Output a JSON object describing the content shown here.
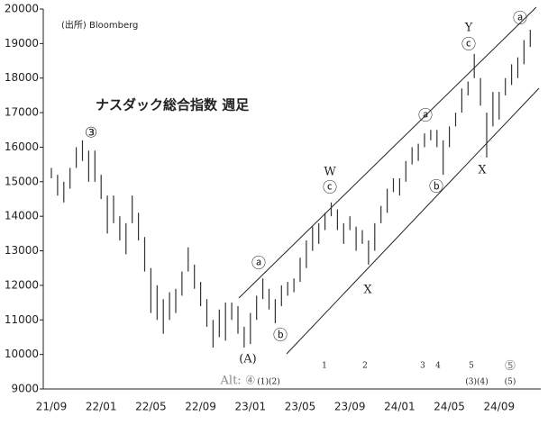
{
  "chart_data": {
    "type": "hilo",
    "title": "ナスダック総合指数 週足",
    "source": "(出所) Bloomberg",
    "color": "#333333",
    "categories": [
      "21/09",
      null,
      null,
      null,
      null,
      null,
      null,
      null,
      "22/01",
      null,
      null,
      null,
      null,
      null,
      null,
      null,
      "22/05",
      null,
      null,
      null,
      null,
      null,
      null,
      null,
      "22/09",
      null,
      null,
      null,
      null,
      null,
      null,
      null,
      "23/01",
      null,
      null,
      null,
      null,
      null,
      null,
      null,
      "23/05",
      null,
      null,
      null,
      null,
      null,
      null,
      null,
      "23/09",
      null,
      null,
      null,
      null,
      null,
      null,
      null,
      "24/01",
      null,
      null,
      null,
      null,
      null,
      null,
      null,
      "24/05",
      null,
      null,
      null,
      null,
      null,
      null,
      null,
      "24/09",
      null,
      null,
      null,
      null,
      null
    ],
    "high": [
      15400,
      15200,
      15000,
      15400,
      16000,
      16200,
      15900,
      15900,
      15200,
      14600,
      14600,
      14000,
      13800,
      14600,
      14100,
      13400,
      12500,
      12000,
      11600,
      11800,
      11900,
      12400,
      13100,
      12600,
      12100,
      11600,
      11000,
      11300,
      11500,
      11500,
      11400,
      10800,
      11200,
      11700,
      12200,
      11900,
      11600,
      12000,
      12100,
      12200,
      12800,
      13300,
      13700,
      13800,
      14100,
      14400,
      14200,
      13800,
      14000,
      13700,
      13600,
      13300,
      13800,
      14300,
      14800,
      15100,
      15100,
      15600,
      16000,
      16100,
      16400,
      16500,
      16500,
      16200,
      16600,
      17000,
      17700,
      17900,
      18700,
      18000,
      17000,
      17600,
      17600,
      18000,
      18400,
      18600,
      19100,
      19400
    ],
    "low": [
      15100,
      14600,
      14400,
      14800,
      15400,
      15600,
      15000,
      15000,
      14500,
      13500,
      13800,
      13300,
      12900,
      13800,
      13300,
      12400,
      11200,
      11000,
      10600,
      11000,
      11200,
      11700,
      12400,
      11900,
      11400,
      10800,
      10200,
      10500,
      10400,
      11000,
      10600,
      10200,
      10300,
      11000,
      11600,
      11300,
      10900,
      11400,
      11700,
      11800,
      12100,
      12500,
      13000,
      13200,
      13600,
      14000,
      13600,
      13200,
      13600,
      13000,
      13200,
      12600,
      13000,
      13800,
      14100,
      14700,
      14600,
      15000,
      15500,
      15600,
      16000,
      16200,
      16000,
      15200,
      16000,
      16600,
      17000,
      17500,
      18000,
      17200,
      15700,
      16600,
      16800,
      17500,
      17800,
      18000,
      18400,
      18900
    ],
    "ylim": [
      9000,
      20000
    ],
    "yticks": [
      9000,
      10000,
      11000,
      12000,
      13000,
      14000,
      15000,
      16000,
      17000,
      18000,
      19000,
      20000
    ],
    "annotations": [
      "③",
      "ⓐ",
      "ⓑ",
      "(A)",
      "W",
      "ⓒ",
      "X",
      "ⓐ",
      "ⓑ",
      "Y",
      "ⓒ",
      "X",
      "ⓐ",
      "Alt: ④",
      "(1)(2)",
      "1",
      "2",
      "3",
      "4",
      "5",
      "⑤",
      "(3)(4)",
      "(5)"
    ]
  }
}
